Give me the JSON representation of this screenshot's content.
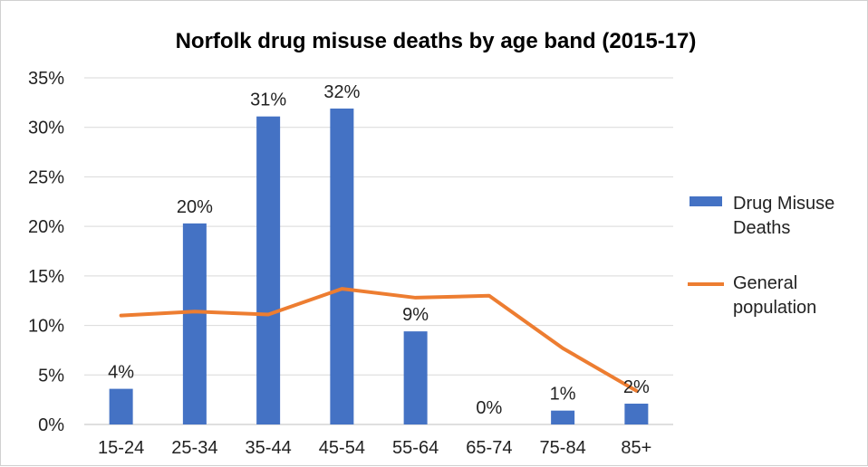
{
  "chart_data": {
    "type": "bar",
    "title": "Norfolk drug misuse deaths by age band (2015-17)",
    "categories": [
      "15-24",
      "25-34",
      "35-44",
      "45-54",
      "55-64",
      "65-74",
      "75-84",
      "85+"
    ],
    "series": [
      {
        "name": "Drug Misuse Deaths",
        "type": "bar",
        "color": "#4472c4",
        "values": [
          3.6,
          20.3,
          31.1,
          31.9,
          9.4,
          0.0,
          1.4,
          2.1
        ],
        "labels": [
          "4%",
          "20%",
          "31%",
          "32%",
          "9%",
          "0%",
          "1%",
          "2%"
        ]
      },
      {
        "name": "General population",
        "type": "line",
        "color": "#ed7d31",
        "values": [
          11.0,
          11.4,
          11.1,
          13.7,
          12.8,
          13.0,
          7.7,
          3.4
        ]
      }
    ],
    "legend_lines": [
      [
        "Drug Misuse",
        "Deaths"
      ],
      [
        "General",
        "population"
      ]
    ],
    "ylim": [
      0,
      35
    ],
    "yticks": [
      0,
      5,
      10,
      15,
      20,
      25,
      30,
      35
    ],
    "ytick_labels": [
      "0%",
      "5%",
      "10%",
      "15%",
      "20%",
      "25%",
      "30%",
      "35%"
    ],
    "grid": true,
    "legend_position": "right"
  }
}
